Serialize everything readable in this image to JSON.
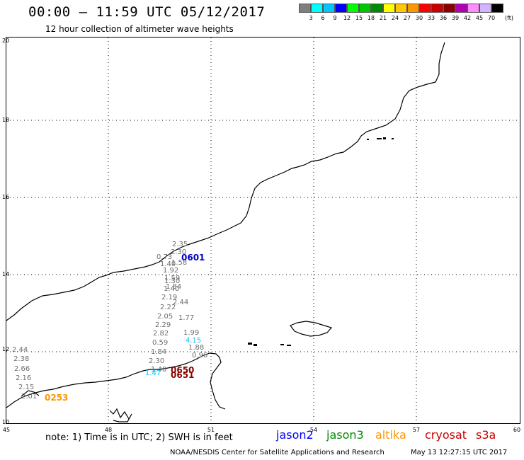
{
  "header": {
    "title": "00:00 – 11:59 UTC 05/12/2017",
    "subtitle": "12 hour collection of altimeter wave heights"
  },
  "color_scale": {
    "colors": [
      "#7f7f7f",
      "#00ffff",
      "#00c8ff",
      "#0000ff",
      "#00ff00",
      "#00c800",
      "#008c00",
      "#ffff00",
      "#ffc800",
      "#ff9600",
      "#ff0000",
      "#c80000",
      "#8c0000",
      "#b400b4",
      "#ff8cff",
      "#d2b4ff",
      "#000000"
    ],
    "labels": [
      "3",
      "6",
      "9",
      "12",
      "15",
      "18",
      "21",
      "24",
      "27",
      "30",
      "33",
      "36",
      "39",
      "42",
      "45",
      "70",
      "(ft)"
    ]
  },
  "axes": {
    "y_labels": [
      "20",
      "18",
      "16",
      "14",
      "12",
      "10"
    ],
    "x_labels": [
      "45",
      "48",
      "51",
      "54",
      "57",
      "60"
    ]
  },
  "footer": {
    "note": "note: 1) Time is in UTC; 2) SWH is in feet",
    "credit": "NOAA/NESDIS Center for Satellite Applications and Research",
    "timestamp": "May 13 12:27:15 UTC 2017"
  },
  "legend": [
    {
      "name": "jason2",
      "color": "#0000ff"
    },
    {
      "name": "jason3",
      "color": "#008c00"
    },
    {
      "name": "altika",
      "color": "#ff9600"
    },
    {
      "name": "cryosat",
      "color": "#c80000"
    },
    {
      "name": "s3a",
      "color": "#c80000"
    }
  ],
  "swh_values": [
    {
      "v": "2.35",
      "c": "#6e6e6e"
    },
    {
      "v": "2.30",
      "c": "#6e6e6e"
    },
    {
      "v": "0.73",
      "c": "#6e6e6e"
    },
    {
      "v": "1.58",
      "c": "#6e6e6e"
    },
    {
      "v": "1.40",
      "c": "#6e6e6e"
    },
    {
      "v": "1.92",
      "c": "#6e6e6e"
    },
    {
      "v": "1.59",
      "c": "#6e6e6e"
    },
    {
      "v": "1.30",
      "c": "#6e6e6e"
    },
    {
      "v": "1.84",
      "c": "#6e6e6e"
    },
    {
      "v": "1.40",
      "c": "#6e6e6e"
    },
    {
      "v": "2.19",
      "c": "#6e6e6e"
    },
    {
      "v": "2.44",
      "c": "#6e6e6e"
    },
    {
      "v": "2.22",
      "c": "#6e6e6e"
    },
    {
      "v": "2.05",
      "c": "#6e6e6e"
    },
    {
      "v": "1.77",
      "c": "#6e6e6e"
    },
    {
      "v": "2.29",
      "c": "#6e6e6e"
    },
    {
      "v": "2.82",
      "c": "#6e6e6e"
    },
    {
      "v": "1.99",
      "c": "#6e6e6e"
    },
    {
      "v": "0.59",
      "c": "#6e6e6e"
    },
    {
      "v": "4.15",
      "c": "#00c8ff"
    },
    {
      "v": "1.84",
      "c": "#6e6e6e"
    },
    {
      "v": "1.88",
      "c": "#6e6e6e"
    },
    {
      "v": "0.96",
      "c": "#6e6e6e"
    },
    {
      "v": "2.30",
      "c": "#6e6e6e"
    },
    {
      "v": "1.40",
      "c": "#6e6e6e"
    },
    {
      "v": "1.47",
      "c": "#00c8ff"
    },
    {
      "v": "2.44",
      "c": "#6e6e6e"
    },
    {
      "v": "2.38",
      "c": "#6e6e6e"
    },
    {
      "v": "2.66",
      "c": "#6e6e6e"
    },
    {
      "v": "2.16",
      "c": "#6e6e6e"
    },
    {
      "v": "2.15",
      "c": "#6e6e6e"
    },
    {
      "v": "2.01",
      "c": "#6e6e6e"
    }
  ],
  "pass_times": [
    {
      "t": "0601",
      "color": "#0000c8"
    },
    {
      "t": "0650",
      "color": "#8c0000"
    },
    {
      "t": "0651",
      "color": "#8c0000"
    },
    {
      "t": "0253",
      "color": "#ff9600"
    }
  ]
}
